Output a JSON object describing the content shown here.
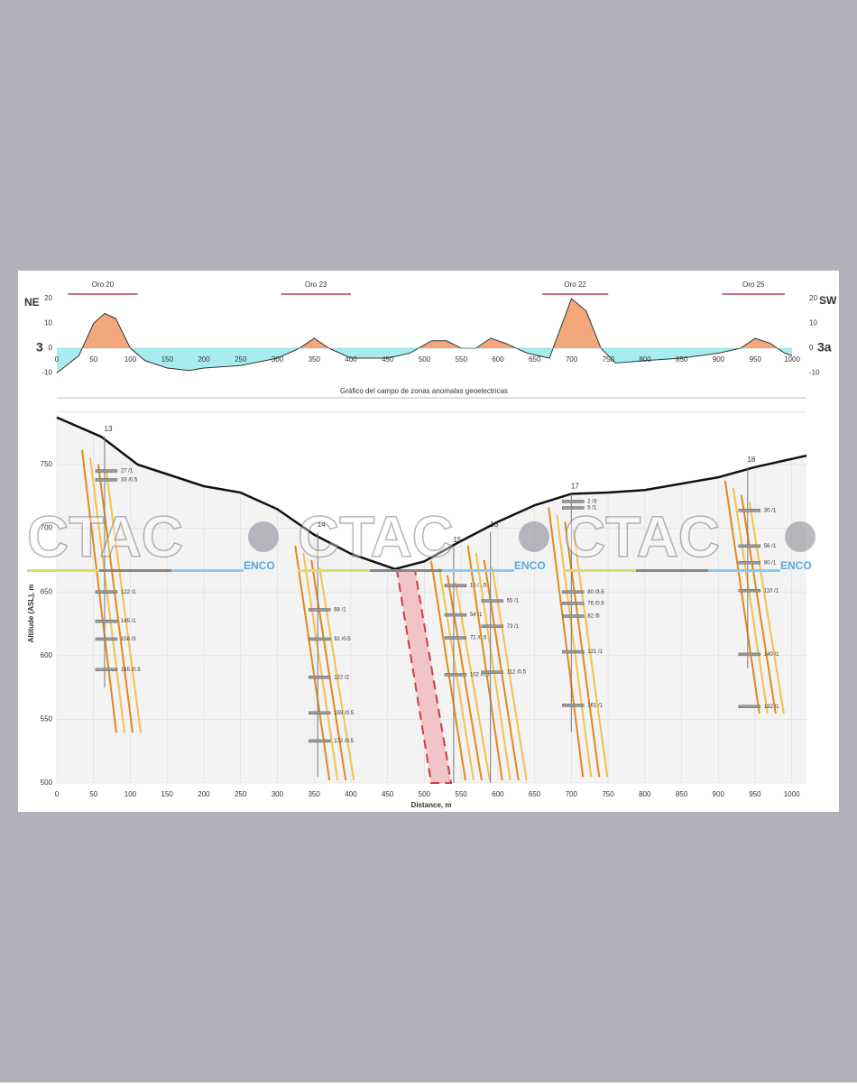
{
  "chart_data": [
    {
      "type": "area",
      "title": "Gráfico del campo de zonas anomalas geoelectricas",
      "left_label": "NE",
      "right_label": "SW",
      "left_section": "3",
      "right_section": "3a",
      "x": [
        0,
        30,
        50,
        65,
        80,
        100,
        120,
        150,
        180,
        200,
        250,
        300,
        330,
        350,
        370,
        400,
        450,
        480,
        510,
        530,
        550,
        570,
        590,
        610,
        640,
        670,
        690,
        700,
        720,
        740,
        760,
        800,
        850,
        900,
        930,
        950,
        970,
        990,
        1000
      ],
      "values": [
        -10,
        -3,
        10,
        14,
        12,
        0,
        -5,
        -8,
        -9,
        -8,
        -7,
        -4,
        0,
        4,
        0,
        -4,
        -4,
        -2,
        3,
        3,
        0,
        0,
        4,
        2,
        -2,
        -4,
        12,
        20,
        15,
        0,
        -6,
        -5,
        -4,
        -2,
        0,
        4,
        2,
        -2,
        -3
      ],
      "positive_color": "#f4a77a",
      "negative_color": "#a8ecf0",
      "xlim": [
        0,
        1000
      ],
      "xticks": [
        0,
        50,
        100,
        150,
        200,
        250,
        300,
        350,
        400,
        450,
        500,
        550,
        600,
        650,
        700,
        750,
        800,
        850,
        900,
        950,
        1000
      ],
      "ylim": [
        -10,
        20
      ],
      "yticks": [
        -10,
        0,
        10,
        20
      ],
      "zones": [
        {
          "label": "Oro 20",
          "x": [
            15,
            110
          ]
        },
        {
          "label": "Oro 23",
          "x": [
            305,
            400
          ]
        },
        {
          "label": "Oro 22",
          "x": [
            660,
            750
          ]
        },
        {
          "label": "Oro 25",
          "x": [
            905,
            990
          ]
        }
      ]
    },
    {
      "type": "section",
      "xlabel": "Distance, m",
      "ylabel": "Altitude (ASL), m",
      "xlim": [
        0,
        1020
      ],
      "xticks": [
        0,
        50,
        100,
        150,
        200,
        250,
        300,
        350,
        400,
        450,
        500,
        550,
        600,
        650,
        700,
        750,
        800,
        850,
        900,
        950,
        1000
      ],
      "ylim": [
        500,
        790
      ],
      "yticks": [
        500,
        550,
        600,
        650,
        700,
        750
      ],
      "surface": {
        "x": [
          0,
          60,
          110,
          200,
          250,
          300,
          350,
          400,
          460,
          500,
          550,
          600,
          650,
          700,
          750,
          800,
          900,
          950,
          1020
        ],
        "values": [
          787,
          772,
          750,
          733,
          728,
          715,
          695,
          680,
          668,
          674,
          690,
          705,
          718,
          727,
          728,
          730,
          740,
          748,
          757
        ]
      },
      "boreholes": [
        {
          "name": "13",
          "x": 65,
          "top": 772,
          "bottom": 575,
          "intervals": [
            {
              "label": "27 /1",
              "y": 745
            },
            {
              "label": "33 /0.5",
              "y": 738
            },
            {
              "label": "122 /1",
              "y": 650
            },
            {
              "label": "145 /1",
              "y": 627
            },
            {
              "label": "158 /3",
              "y": 613
            },
            {
              "label": "185 /0.5",
              "y": 589
            }
          ]
        },
        {
          "name": "14",
          "x": 355,
          "top": 697,
          "bottom": 505,
          "intervals": [
            {
              "label": "88 /1",
              "y": 636
            },
            {
              "label": "92 /0.5",
              "y": 613
            },
            {
              "label": "122 /2",
              "y": 583
            },
            {
              "label": "159 /0.5",
              "y": 555
            },
            {
              "label": "172 /0.5",
              "y": 533
            }
          ]
        },
        {
          "name": "15",
          "x": 540,
          "top": 685,
          "bottom": 500,
          "intervals": [
            {
              "label": "16 /1.5",
              "y": 655
            },
            {
              "label": "54 /1",
              "y": 632
            },
            {
              "label": "72 /0.5",
              "y": 614
            },
            {
              "label": "102 /0.5",
              "y": 585
            }
          ]
        },
        {
          "name": "16",
          "x": 590,
          "top": 697,
          "bottom": 500,
          "intervals": [
            {
              "label": "55 /1",
              "y": 643
            },
            {
              "label": "73 /1",
              "y": 623
            },
            {
              "label": "112 /0.5",
              "y": 587
            }
          ]
        },
        {
          "name": "17",
          "x": 700,
          "top": 727,
          "bottom": 540,
          "intervals": [
            {
              "label": "2 /3",
              "y": 721
            },
            {
              "label": "5 /1",
              "y": 716
            },
            {
              "label": "80 /3.5",
              "y": 650
            },
            {
              "label": "76 /0.5",
              "y": 641
            },
            {
              "label": "82 /5",
              "y": 631
            },
            {
              "label": "121 /1",
              "y": 603
            },
            {
              "label": "161 /1",
              "y": 561
            }
          ]
        },
        {
          "name": "18",
          "x": 940,
          "top": 748,
          "bottom": 590,
          "intervals": [
            {
              "label": "30 /1",
              "y": 714
            },
            {
              "label": "56 /1",
              "y": 686
            },
            {
              "label": "80 /1",
              "y": 673
            },
            {
              "label": "110 /1",
              "y": 651
            },
            {
              "label": "140 /1",
              "y": 601
            },
            {
              "label": "182 /1",
              "y": 560
            }
          ]
        }
      ]
    }
  ],
  "watermark": {
    "text": "CTAC",
    "sub": "ENCO"
  }
}
